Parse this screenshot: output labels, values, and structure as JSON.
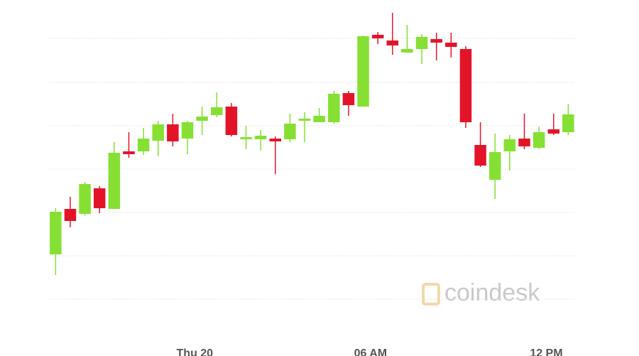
{
  "chart_data": {
    "type": "candlestick",
    "categories": [
      null,
      null,
      null,
      null,
      null,
      null,
      null,
      null,
      null,
      null,
      "Thu 20",
      null,
      null,
      null,
      null,
      null,
      null,
      null,
      null,
      null,
      null,
      null,
      "06 AM",
      null,
      null,
      null,
      null,
      null,
      null,
      null,
      null,
      null,
      null,
      null,
      "12 PM",
      null
    ],
    "open": [
      63,
      127,
      120,
      156,
      127,
      208,
      208,
      223,
      246,
      226,
      251,
      259,
      271,
      225,
      225,
      226,
      225,
      251,
      249,
      249,
      290,
      271,
      372,
      364,
      347,
      352,
      366,
      361,
      352,
      217,
      168,
      208,
      226,
      213,
      239,
      235
    ],
    "high": [
      128,
      144,
      165,
      159,
      221,
      235,
      241,
      251,
      261,
      251,
      271,
      291,
      276,
      244,
      238,
      229,
      261,
      263,
      269,
      293,
      293,
      371,
      376,
      403,
      386,
      373,
      375,
      375,
      356,
      249,
      233,
      231,
      261,
      243,
      261,
      275
    ],
    "low": [
      34,
      101,
      118,
      121,
      127,
      199,
      203,
      201,
      215,
      204,
      231,
      256,
      229,
      211,
      209,
      176,
      221,
      221,
      249,
      247,
      258,
      271,
      359,
      344,
      347,
      331,
      336,
      340,
      241,
      186,
      141,
      181,
      211,
      211,
      231,
      231
    ],
    "close": [
      123,
      110,
      162,
      128,
      206,
      204,
      226,
      246,
      222,
      249,
      257,
      270,
      231,
      228,
      230,
      222,
      247,
      254,
      258,
      289,
      273,
      370,
      367,
      357,
      352,
      369,
      361,
      355,
      249,
      188,
      207,
      225,
      215,
      235,
      233,
      260
    ],
    "up_color": "#86e034",
    "down_color": "#e3142a",
    "ylim": [
      0,
      403
    ],
    "yticks": [
      0,
      61,
      122,
      183,
      244,
      305,
      367
    ],
    "grid": true,
    "watermark": "coindesk"
  }
}
